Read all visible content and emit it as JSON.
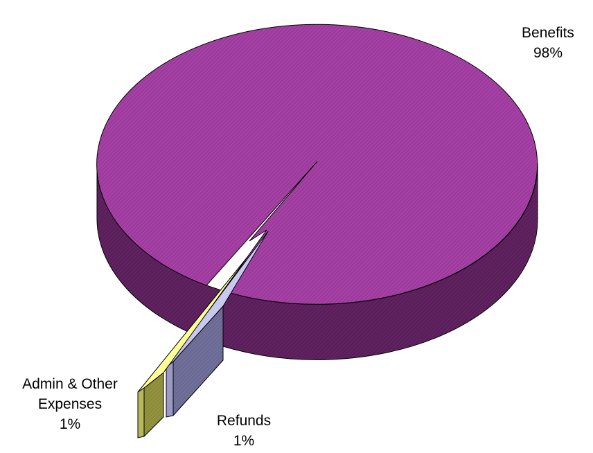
{
  "chart_data": {
    "type": "pie",
    "style": "3d-exploded",
    "legend": "none",
    "slices": [
      {
        "name": "Benefits",
        "value": 98,
        "percent_label": "98%",
        "color": "#9e3a9e",
        "side_color": "#5a1f5a"
      },
      {
        "name": "Refunds",
        "value": 1,
        "percent_label": "1%",
        "color": "#c8c8f2",
        "side_color": "#6a6a94"
      },
      {
        "name": "Admin & Other Expenses",
        "value": 1,
        "percent_label": "1%",
        "color": "#ffff99",
        "side_color": "#8c8c3a"
      }
    ]
  },
  "labels": {
    "benefits": {
      "name": "Benefits",
      "pct": "98%"
    },
    "admin": {
      "name_line1": "Admin & Other",
      "name_line2": "Expenses",
      "pct": "1%"
    },
    "refunds": {
      "name": "Refunds",
      "pct": "1%"
    }
  }
}
